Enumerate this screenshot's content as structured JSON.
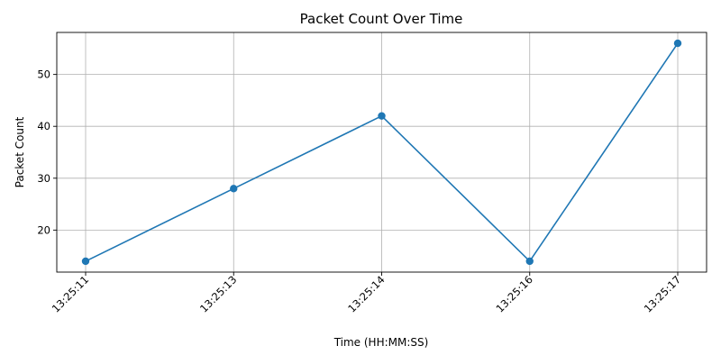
{
  "chart_data": {
    "type": "line",
    "title": "Packet Count Over Time",
    "xlabel": "Time (HH:MM:SS)",
    "ylabel": "Packet Count",
    "categories": [
      "13:25:11",
      "13:25:13",
      "13:25:14",
      "13:25:16",
      "13:25:17"
    ],
    "values": [
      14,
      28,
      42,
      14,
      56
    ],
    "yticks": [
      20,
      30,
      40,
      50
    ],
    "ylim": [
      11.9,
      58.1
    ],
    "grid": true,
    "marker": "circle",
    "line_color": "#1f77b4",
    "x_tick_rotation_deg": 45
  }
}
